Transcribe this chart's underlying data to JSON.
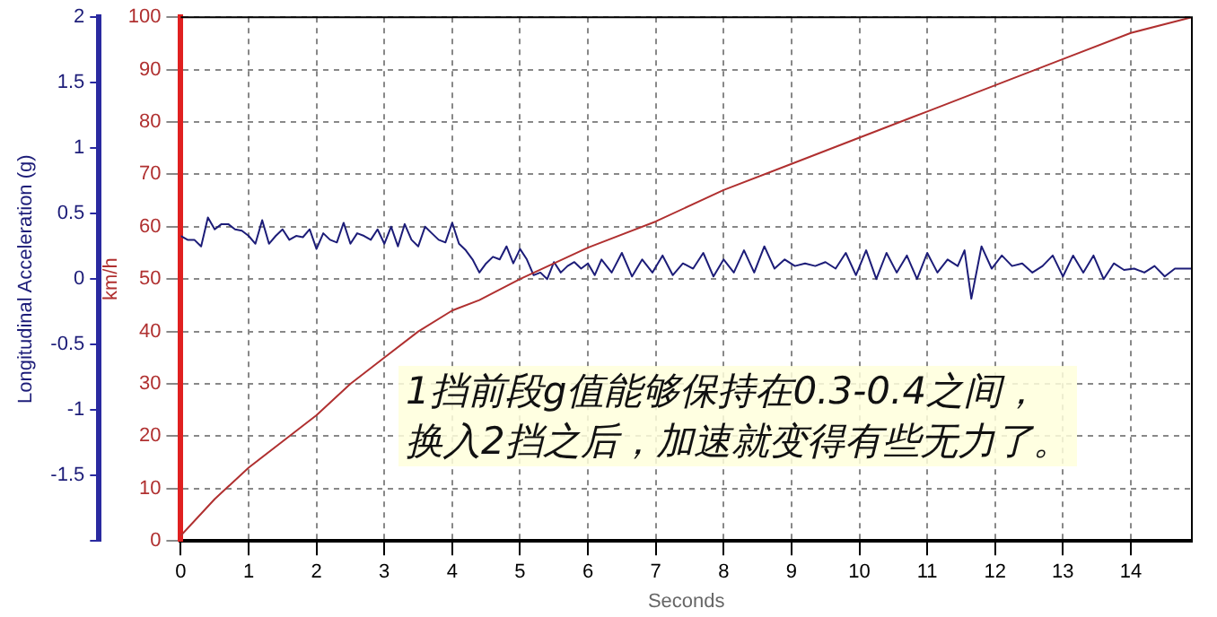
{
  "chart_data": {
    "type": "line",
    "xlabel": "Seconds",
    "ylabel": "km/h",
    "y2label": "Longitudinal Acceleration (g)",
    "annotations": [
      "1挡前段g值能够保持在0.3-0.4之间，",
      "换入2挡之后，加速就变得有些无力了。"
    ],
    "xlim": [
      0,
      14.9
    ],
    "xticks": [
      0,
      1,
      2,
      3,
      4,
      5,
      6,
      7,
      8,
      9,
      10,
      11,
      12,
      13,
      14
    ],
    "ylim": [
      0,
      100
    ],
    "yticks": [
      0,
      10,
      20,
      30,
      40,
      50,
      60,
      70,
      80,
      90,
      100
    ],
    "y2lim": [
      -2,
      2
    ],
    "y2ticks": [
      {
        "value": -2,
        "label": null
      },
      -1.5,
      -1,
      -0.5,
      0,
      0.5,
      1,
      1.5,
      2
    ],
    "grid": true,
    "legend": false,
    "marker": "none",
    "series": [
      {
        "color": "#b03030",
        "x": [
          0,
          0.5,
          1,
          1.5,
          2,
          2.5,
          3,
          3.5,
          4,
          4.4,
          5,
          5.5,
          6,
          7,
          8,
          9,
          10,
          11,
          12,
          13,
          14,
          14.9
        ],
        "values": [
          1,
          8,
          14,
          19,
          24,
          30,
          35,
          40,
          44,
          46,
          50,
          53,
          56,
          61,
          67,
          72,
          77,
          82,
          87,
          92,
          97,
          100
        ]
      },
      {
        "color": "#1c1c78",
        "axis": "y2",
        "x": [
          0,
          0.1,
          0.2,
          0.3,
          0.4,
          0.5,
          0.6,
          0.7,
          0.8,
          0.9,
          1.0,
          1.1,
          1.2,
          1.3,
          1.4,
          1.5,
          1.6,
          1.7,
          1.8,
          1.9,
          2.0,
          2.1,
          2.2,
          2.3,
          2.4,
          2.5,
          2.6,
          2.7,
          2.8,
          2.9,
          3.0,
          3.1,
          3.2,
          3.3,
          3.4,
          3.5,
          3.6,
          3.7,
          3.8,
          3.9,
          4.0,
          4.1,
          4.2,
          4.3,
          4.4,
          4.5,
          4.6,
          4.7,
          4.8,
          4.9,
          5.0,
          5.1,
          5.2,
          5.3,
          5.4,
          5.5,
          5.6,
          5.7,
          5.8,
          5.9,
          6.0,
          6.1,
          6.2,
          6.35,
          6.5,
          6.65,
          6.8,
          6.95,
          7.1,
          7.25,
          7.4,
          7.55,
          7.7,
          7.85,
          8.0,
          8.15,
          8.3,
          8.45,
          8.6,
          8.75,
          8.9,
          9.05,
          9.2,
          9.35,
          9.5,
          9.65,
          9.8,
          9.95,
          10.1,
          10.25,
          10.4,
          10.55,
          10.7,
          10.85,
          11.0,
          11.15,
          11.3,
          11.45,
          11.55,
          11.65,
          11.8,
          11.95,
          12.1,
          12.25,
          12.4,
          12.55,
          12.7,
          12.85,
          13.0,
          13.15,
          13.3,
          13.45,
          13.6,
          13.75,
          13.9,
          14.05,
          14.2,
          14.35,
          14.5,
          14.65,
          14.8,
          14.9
        ],
        "values": [
          0.33,
          0.3,
          0.3,
          0.25,
          0.47,
          0.38,
          0.42,
          0.42,
          0.38,
          0.37,
          0.33,
          0.27,
          0.45,
          0.27,
          0.33,
          0.38,
          0.3,
          0.33,
          0.32,
          0.38,
          0.23,
          0.35,
          0.3,
          0.28,
          0.43,
          0.27,
          0.35,
          0.33,
          0.3,
          0.38,
          0.27,
          0.4,
          0.25,
          0.42,
          0.3,
          0.25,
          0.4,
          0.35,
          0.3,
          0.28,
          0.43,
          0.27,
          0.22,
          0.15,
          0.05,
          0.12,
          0.17,
          0.15,
          0.25,
          0.12,
          0.23,
          0.15,
          0.03,
          0.05,
          0.0,
          0.13,
          0.05,
          0.1,
          0.13,
          0.08,
          0.12,
          0.03,
          0.15,
          0.05,
          0.2,
          0.02,
          0.15,
          0.05,
          0.18,
          0.03,
          0.12,
          0.08,
          0.2,
          0.02,
          0.15,
          0.05,
          0.22,
          0.05,
          0.25,
          0.08,
          0.15,
          0.1,
          0.12,
          0.1,
          0.13,
          0.08,
          0.2,
          0.03,
          0.22,
          0.0,
          0.2,
          0.05,
          0.18,
          0.0,
          0.2,
          0.05,
          0.15,
          0.1,
          0.22,
          -0.15,
          0.25,
          0.08,
          0.18,
          0.1,
          0.12,
          0.05,
          0.1,
          0.18,
          0.02,
          0.18,
          0.05,
          0.18,
          0.0,
          0.12,
          0.07,
          0.08,
          0.05,
          0.1,
          0.02,
          0.08,
          0.08,
          0.08
        ]
      }
    ]
  }
}
